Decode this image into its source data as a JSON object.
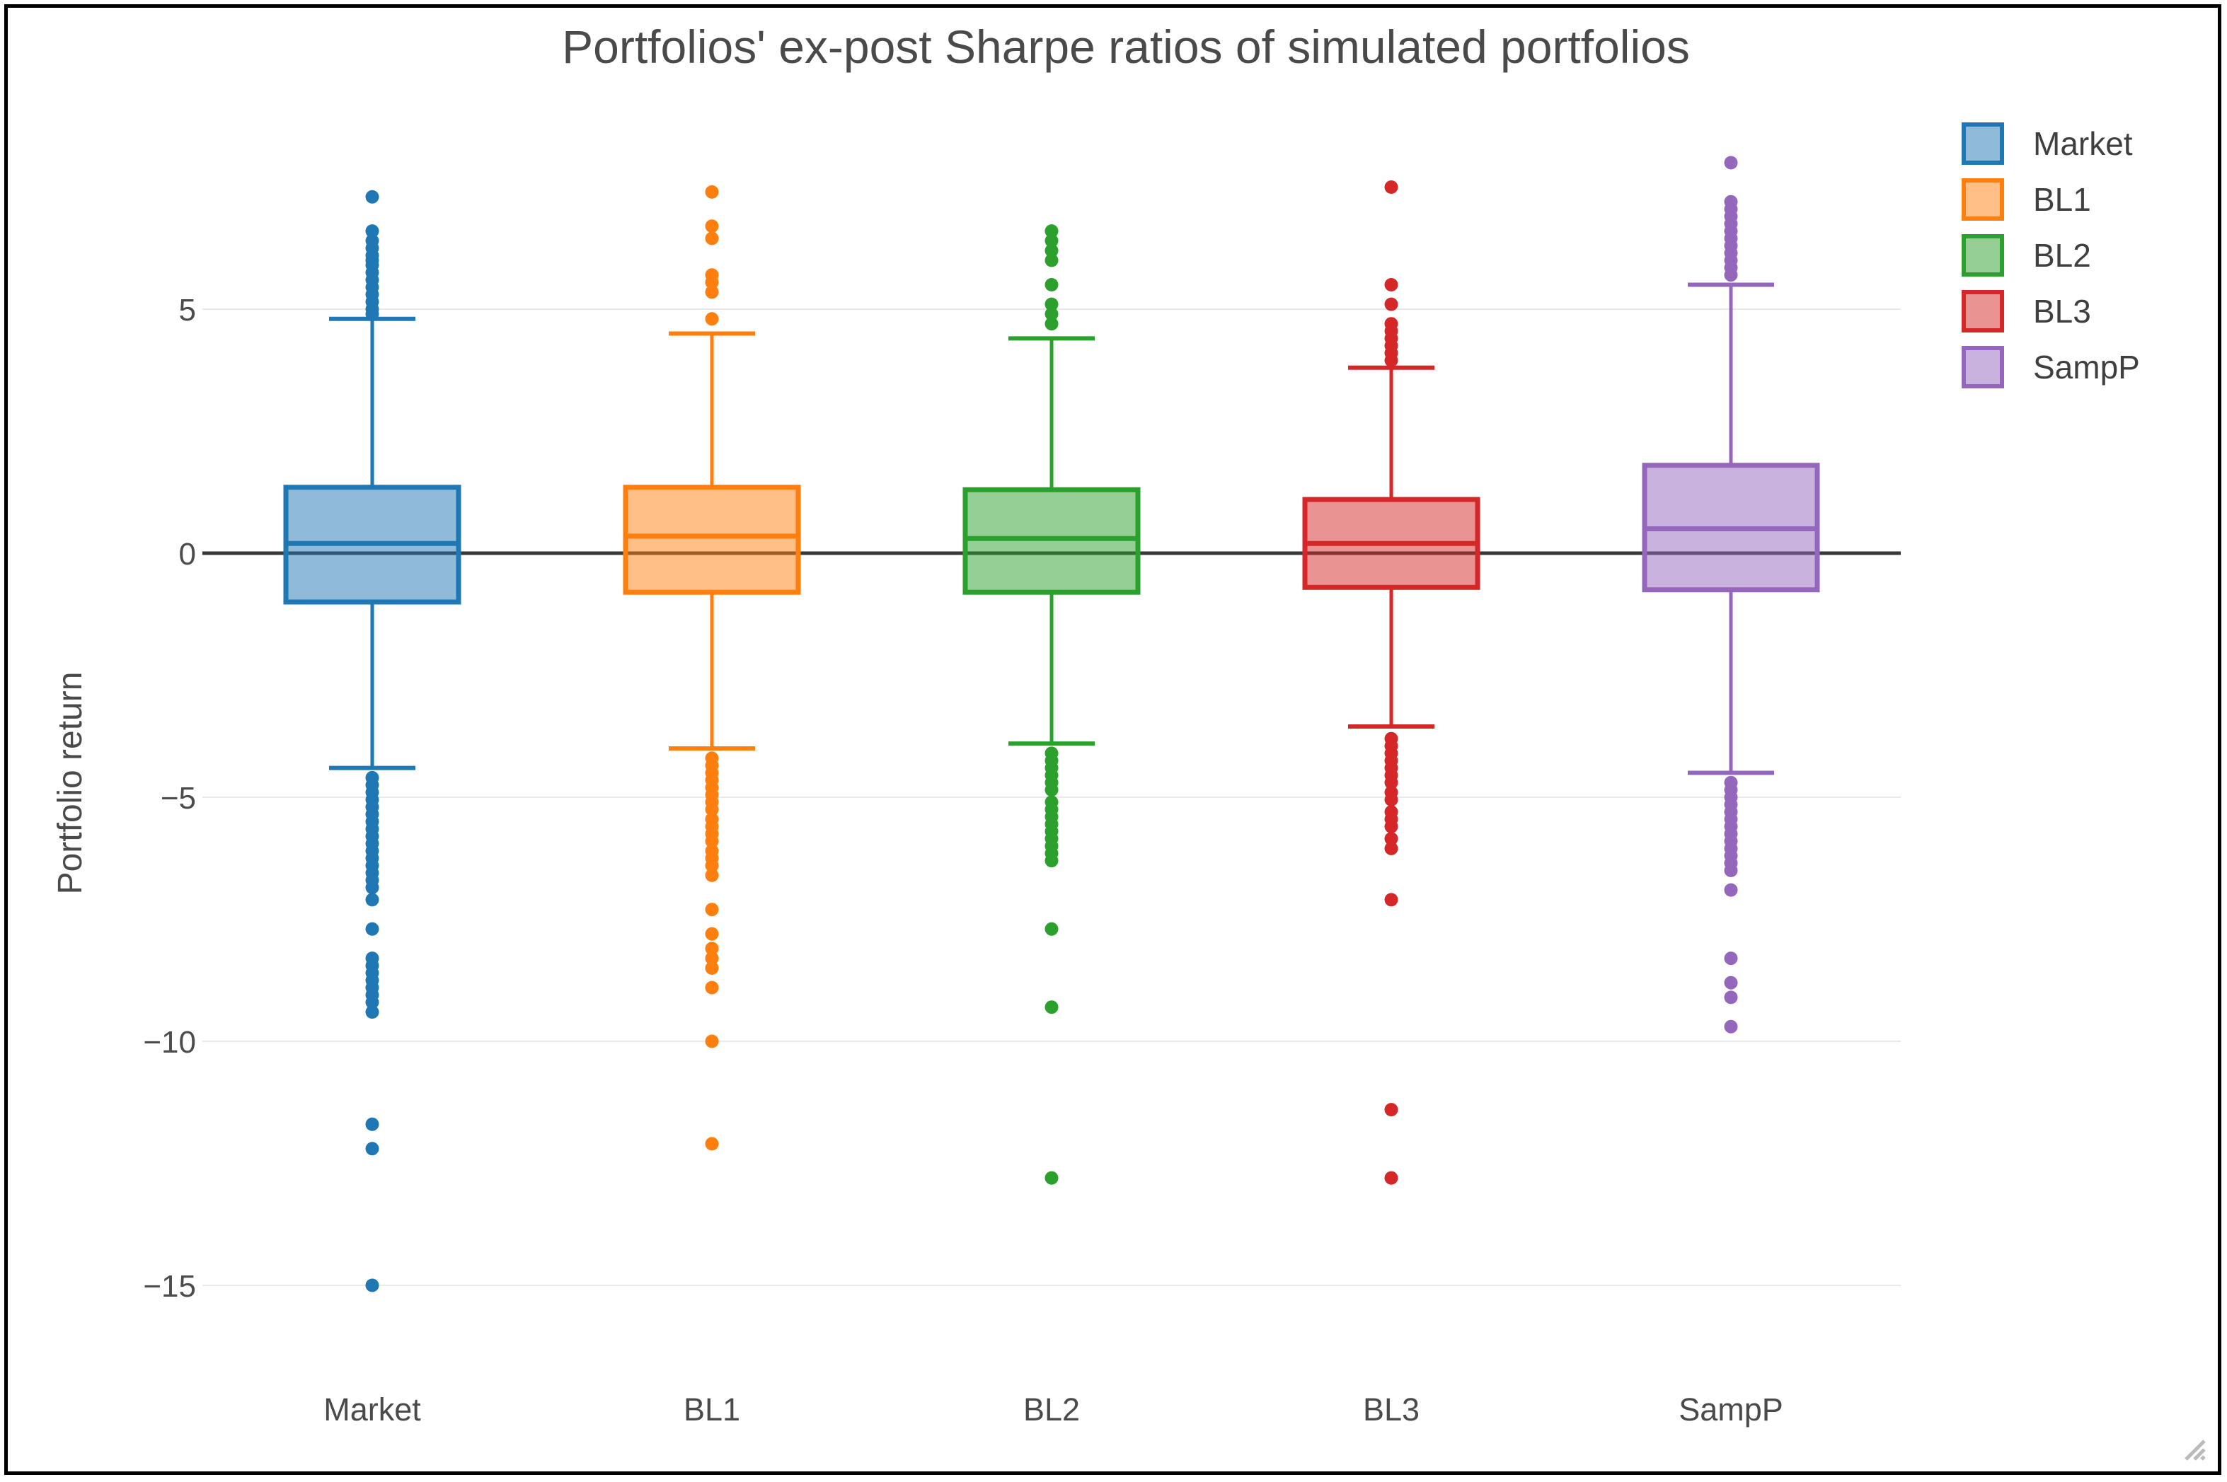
{
  "window": {
    "background": "#ffffff",
    "border_color": "#000000"
  },
  "chart_data": {
    "type": "box",
    "title": "Portfolios' ex-post Sharpe ratios of simulated portfolios",
    "ylabel": "Portfolio return",
    "xlabel": "",
    "yticks": [
      5,
      0,
      -5,
      -10,
      -15
    ],
    "ylim": [
      -16.5,
      9
    ],
    "grid": true,
    "grid_color": "#e9e9e9",
    "zero_line_color": "#383838",
    "text_color": "#4a4a4a",
    "tick_color": "#4c4c4c",
    "legend_position": "top-right",
    "categories": [
      "Market",
      "BL1",
      "BL2",
      "BL3",
      "SampP"
    ],
    "series": [
      {
        "name": "Market",
        "line": "#1f77b4",
        "fill": "rgba(31,119,180,0.5)",
        "q1": -1.0,
        "median": 0.2,
        "q3": 1.35,
        "whisker_low": -4.4,
        "whisker_high": 4.8,
        "outliers_high": [
          7.3,
          6.6,
          6.4,
          6.25,
          6.1,
          6.0,
          5.9,
          5.75,
          5.6,
          5.45,
          5.3,
          5.15,
          5.0,
          4.9
        ],
        "outliers_low": [
          -4.6,
          -4.75,
          -4.9,
          -5.05,
          -5.2,
          -5.35,
          -5.5,
          -5.65,
          -5.8,
          -5.95,
          -6.1,
          -6.25,
          -6.4,
          -6.55,
          -6.7,
          -6.85,
          -7.1,
          -7.7,
          -8.3,
          -8.45,
          -8.6,
          -8.75,
          -8.9,
          -9.05,
          -9.2,
          -9.4,
          -11.7,
          -12.2,
          -15.0
        ]
      },
      {
        "name": "BL1",
        "line": "#ff7f0e",
        "fill": "rgba(255,127,14,0.5)",
        "q1": -0.8,
        "median": 0.35,
        "q3": 1.35,
        "whisker_low": -4.0,
        "whisker_high": 4.5,
        "outliers_high": [
          7.4,
          6.7,
          6.45,
          5.7,
          5.55,
          5.35,
          4.8
        ],
        "outliers_low": [
          -4.2,
          -4.35,
          -4.5,
          -4.65,
          -4.8,
          -4.95,
          -5.1,
          -5.25,
          -5.45,
          -5.6,
          -5.75,
          -5.9,
          -6.1,
          -6.25,
          -6.4,
          -6.6,
          -7.3,
          -7.8,
          -8.1,
          -8.3,
          -8.5,
          -8.9,
          -10.0,
          -12.1
        ]
      },
      {
        "name": "BL2",
        "line": "#2ca02c",
        "fill": "rgba(44,160,44,0.5)",
        "q1": -0.8,
        "median": 0.3,
        "q3": 1.3,
        "whisker_low": -3.9,
        "whisker_high": 4.4,
        "outliers_high": [
          6.6,
          6.4,
          6.2,
          6.0,
          5.5,
          5.1,
          4.9,
          4.7
        ],
        "outliers_low": [
          -4.1,
          -4.25,
          -4.4,
          -4.55,
          -4.7,
          -4.85,
          -5.1,
          -5.25,
          -5.4,
          -5.55,
          -5.7,
          -5.85,
          -6.0,
          -6.15,
          -6.3,
          -7.7,
          -9.3,
          -12.8
        ]
      },
      {
        "name": "BL3",
        "line": "#d62728",
        "fill": "rgba(214,39,40,0.5)",
        "q1": -0.7,
        "median": 0.2,
        "q3": 1.1,
        "whisker_low": -3.55,
        "whisker_high": 3.8,
        "outliers_high": [
          7.5,
          5.5,
          5.1,
          4.7,
          4.55,
          4.4,
          4.25,
          4.1,
          3.95
        ],
        "outliers_low": [
          -3.8,
          -3.95,
          -4.1,
          -4.25,
          -4.4,
          -4.55,
          -4.7,
          -4.9,
          -5.05,
          -5.3,
          -5.45,
          -5.6,
          -5.85,
          -6.05,
          -7.1,
          -11.4,
          -12.8
        ]
      },
      {
        "name": "SampP",
        "line": "#9467bd",
        "fill": "rgba(148,103,189,0.5)",
        "q1": -0.75,
        "median": 0.5,
        "q3": 1.8,
        "whisker_low": -4.5,
        "whisker_high": 5.5,
        "outliers_high": [
          8.0,
          7.2,
          7.05,
          6.9,
          6.75,
          6.6,
          6.45,
          6.3,
          6.15,
          6.0,
          5.85,
          5.7
        ],
        "outliers_low": [
          -4.7,
          -4.85,
          -5.0,
          -5.15,
          -5.3,
          -5.45,
          -5.6,
          -5.75,
          -5.9,
          -6.05,
          -6.2,
          -6.35,
          -6.5,
          -6.9,
          -8.3,
          -8.8,
          -9.1,
          -9.7
        ]
      }
    ]
  }
}
